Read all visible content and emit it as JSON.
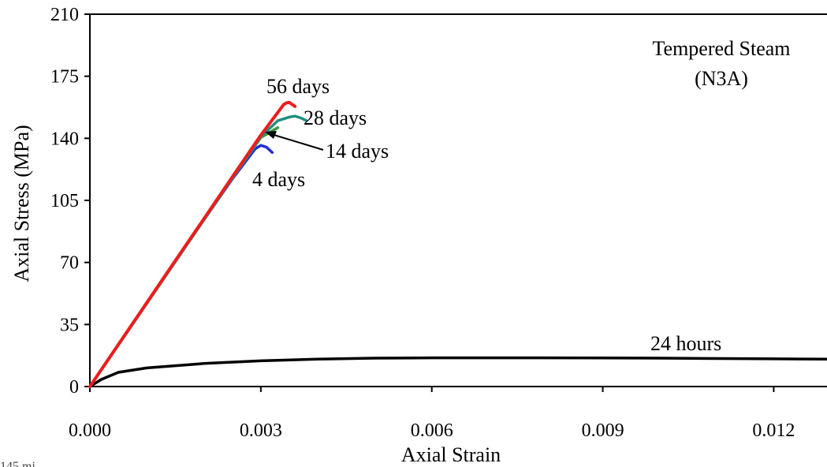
{
  "chart_data": {
    "type": "line",
    "title": "Tempered Steam",
    "subtitle": "(N3A)",
    "xlabel": "Axial Strain",
    "ylabel": "Axial Stress (MPa)",
    "xlim": [
      0.0,
      0.014
    ],
    "ylim": [
      0,
      210
    ],
    "x_ticks": [
      "0.000",
      "0.003",
      "0.006",
      "0.009",
      "0.012"
    ],
    "y_ticks": [
      "0",
      "35",
      "70",
      "105",
      "140",
      "175",
      "210"
    ],
    "grid": false,
    "legend": "none",
    "series": [
      {
        "name": "24 hours",
        "color": "#000000",
        "x": [
          0.0,
          0.0002,
          0.0005,
          0.001,
          0.002,
          0.003,
          0.004,
          0.005,
          0.006,
          0.008,
          0.01,
          0.012,
          0.014
        ],
        "y": [
          0,
          4,
          8,
          10.5,
          13,
          14.5,
          15.5,
          16,
          16.2,
          16.2,
          16.0,
          15.6,
          15.3
        ]
      },
      {
        "name": "4 days",
        "color": "#1f2fd6",
        "x": [
          0.0,
          0.0005,
          0.001,
          0.0015,
          0.002,
          0.0025,
          0.0029,
          0.003,
          0.0031,
          0.0032
        ],
        "y": [
          0,
          23.5,
          47,
          70.5,
          94,
          117,
          134,
          136,
          135,
          132
        ]
      },
      {
        "name": "14 days",
        "color": "#3a9a3a",
        "x": [
          0.0,
          0.0005,
          0.001,
          0.0015,
          0.002,
          0.0025,
          0.003,
          0.0033
        ],
        "y": [
          0,
          23.5,
          47,
          70.5,
          94,
          117.5,
          140.5,
          146
        ]
      },
      {
        "name": "28 days",
        "color": "#1f8f7f",
        "x": [
          0.0,
          0.0005,
          0.001,
          0.0015,
          0.002,
          0.0025,
          0.003,
          0.0033,
          0.0035,
          0.0036,
          0.0037,
          0.0038
        ],
        "y": [
          0,
          23.5,
          47,
          70.5,
          94,
          117.5,
          141,
          150,
          152,
          152.5,
          151.5,
          150
        ]
      },
      {
        "name": "56 days",
        "color": "#ee1c1c",
        "x": [
          0.0,
          0.0005,
          0.001,
          0.0015,
          0.002,
          0.0025,
          0.003,
          0.0034,
          0.00345,
          0.0035,
          0.0036
        ],
        "y": [
          0,
          23.7,
          47.4,
          71,
          94.6,
          118.2,
          141.8,
          159,
          160,
          160.2,
          158
        ]
      }
    ],
    "annotations": [
      {
        "text": "56 days"
      },
      {
        "text": "28 days"
      },
      {
        "text": "14 days"
      },
      {
        "text": "4 days"
      },
      {
        "text": "24 hours"
      }
    ]
  },
  "footer_cut_text": "145 mi"
}
